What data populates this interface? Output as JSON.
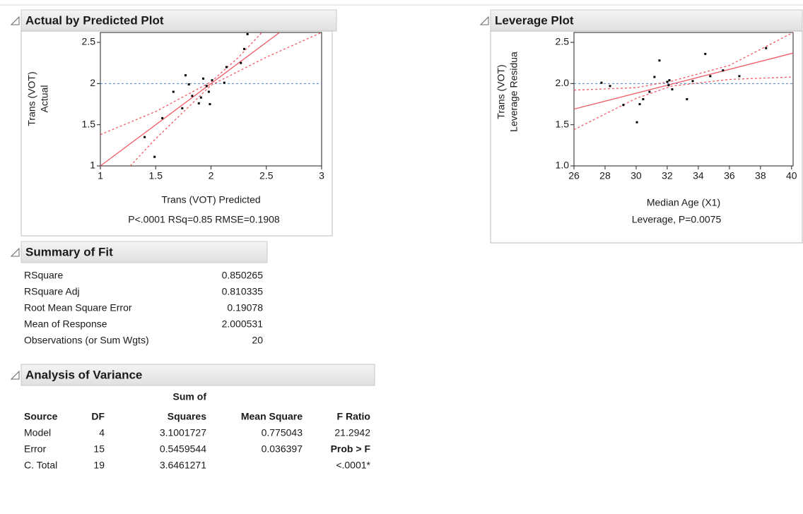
{
  "chart_data": [
    {
      "type": "scatter",
      "title": "Actual by Predicted Plot",
      "y_label": [
        "Trans (VOT)",
        "Actual"
      ],
      "x_label": "Trans (VOT) Predicted",
      "note": "P<.0001 RSq=0.85 RMSE=0.1908",
      "x": [
        1.4,
        1.49,
        1.56,
        1.66,
        1.74,
        1.77,
        1.8,
        1.89,
        1.91,
        1.93,
        1.96,
        1.98,
        1.99,
        2.01,
        2.12,
        2.14,
        2.27,
        2.3,
        2.33,
        1.83
      ],
      "values": [
        1.35,
        1.11,
        1.58,
        1.9,
        1.7,
        2.1,
        1.99,
        1.76,
        1.83,
        2.06,
        1.97,
        1.9,
        1.75,
        2.04,
        2.01,
        2.2,
        2.25,
        2.42,
        2.6,
        1.85
      ],
      "color": "#000000",
      "fit": {
        "x": [
          1,
          2.62
        ],
        "values": [
          1,
          2.62
        ],
        "color": "#f05a66"
      },
      "upper": {
        "x": [
          1,
          1.5,
          2,
          2.25,
          2.46
        ],
        "values": [
          1.38,
          1.66,
          2.02,
          2.32,
          2.62
        ],
        "color": "#f05a66"
      },
      "lower": {
        "x": [
          1.27,
          1.5,
          2,
          2.5,
          3
        ],
        "values": [
          1,
          1.33,
          1.98,
          2.32,
          2.62
        ],
        "color": "#f05a66"
      },
      "mean_line": 2,
      "mean_color": "#4a7fd0",
      "xlim": [
        1,
        3
      ],
      "ylim": [
        1,
        2.62
      ],
      "xticks": [
        1,
        1.5,
        2,
        2.5,
        3
      ],
      "yticks": [
        1,
        1.5,
        2,
        2.5
      ]
    },
    {
      "type": "scatter",
      "title": "Leverage Plot",
      "y_label": [
        "Trans (VOT)",
        "Leverage Residua"
      ],
      "x_label": "Median Age (X1)",
      "note": "Leverage, P=0.0075",
      "x": [
        27.77,
        28.32,
        29.18,
        30.05,
        30.23,
        30.45,
        30.86,
        31.18,
        31.5,
        32.0,
        32.09,
        32.14,
        32.32,
        33.27,
        33.64,
        34.45,
        34.77,
        35.59,
        36.64,
        38.36
      ],
      "values": [
        2.01,
        1.97,
        1.74,
        1.53,
        1.75,
        1.81,
        1.9,
        2.08,
        2.28,
        2.02,
        1.98,
        2.04,
        1.93,
        1.81,
        2.03,
        2.36,
        2.09,
        2.16,
        2.09,
        2.43
      ],
      "color": "#000000",
      "fit": {
        "x": [
          26,
          40.1
        ],
        "values": [
          1.69,
          2.37
        ],
        "color": "#f05a66"
      },
      "upper": {
        "x": [
          26,
          30,
          32.3,
          36,
          40.1
        ],
        "values": [
          1.92,
          1.95,
          2.03,
          2.22,
          2.62
        ],
        "color": "#f05a66"
      },
      "lower": {
        "x": [
          26,
          30,
          32.3,
          36,
          40.1
        ],
        "values": [
          1.44,
          1.82,
          1.97,
          2.05,
          2.08
        ],
        "color": "#f05a66"
      },
      "mean_line": 2,
      "mean_color": "#4a7fd0",
      "xlim": [
        26,
        40.1
      ],
      "ylim": [
        1,
        2.62
      ],
      "xticks": [
        26,
        28,
        30,
        32,
        34,
        36,
        38,
        40
      ],
      "yticks": [
        {
          "value": 1,
          "label": "1.0"
        },
        {
          "value": 1.5,
          "label": "1.5"
        },
        {
          "value": 2,
          "label": "2.0"
        },
        {
          "value": 2.5,
          "label": "2.5"
        }
      ]
    }
  ],
  "summary_of_fit": {
    "title": "Summary of Fit",
    "rows": [
      [
        "RSquare",
        0.850265
      ],
      [
        "RSquare Adj",
        0.810335
      ],
      [
        "Root Mean Square Error",
        0.19078
      ],
      [
        "Mean of Response",
        2.000531
      ],
      [
        "Observations (or Sum Wgts)",
        20
      ]
    ]
  },
  "analysis_of_variance": {
    "title": "Analysis of Variance",
    "header_above": "Sum of",
    "columns": [
      "Source",
      "DF",
      "Squares",
      "Mean Square",
      "F Ratio"
    ],
    "rows": [
      [
        "Model",
        4,
        3.1001727,
        0.775043,
        21.2942
      ],
      [
        "Error",
        15,
        0.5459544,
        0.036397,
        "Prob > F"
      ],
      [
        "C. Total",
        19,
        3.6461271,
        null,
        "<.0001*"
      ]
    ]
  }
}
